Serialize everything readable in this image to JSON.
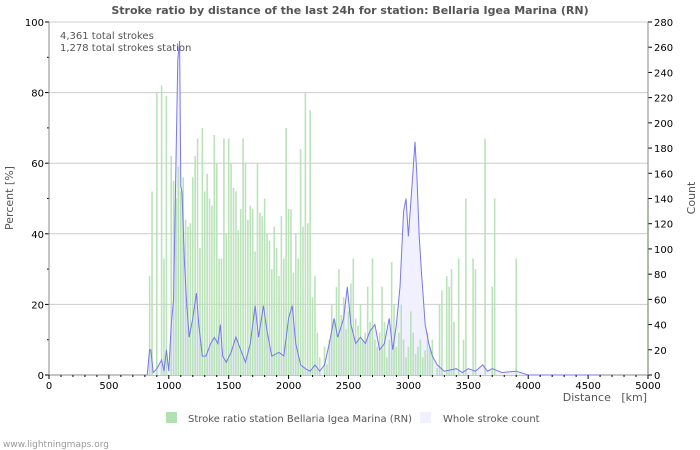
{
  "chart_data": {
    "type": "bar",
    "title": "Stroke ratio by distance of the last 24h for station: Bellaria Igea Marina (RN)",
    "annotations": [
      "4,361 total strokes",
      "1,278 total strokes station"
    ],
    "xlabel": "Distance   [km]",
    "ylabel": "Percent   [%]",
    "y2label": "Count",
    "xlim": [
      0,
      5000
    ],
    "ylim": [
      0,
      100
    ],
    "y2lim": [
      0,
      280
    ],
    "xticks": [
      0,
      500,
      1000,
      1500,
      2000,
      2500,
      3000,
      3500,
      4000,
      4500,
      5000
    ],
    "yticks": [
      0,
      20,
      40,
      60,
      80,
      100
    ],
    "y2ticks": [
      0,
      20,
      40,
      60,
      80,
      100,
      120,
      140,
      160,
      180,
      200,
      220,
      240,
      260,
      280
    ],
    "grid": true,
    "legend_position": "bottom",
    "series": [
      {
        "name": "Stroke ratio station Bellaria Igea Marina (RN)",
        "kind": "bar",
        "axis": "left",
        "color": "#b3e0b3",
        "x_start": 840,
        "bin_km": 20,
        "values": [
          28,
          52,
          0,
          80,
          0,
          82,
          33,
          79,
          0,
          62,
          55,
          50,
          59,
          52,
          56,
          44,
          42,
          43,
          56,
          62,
          67,
          36,
          70,
          52,
          57,
          50,
          48,
          68,
          60,
          33,
          33,
          67,
          40,
          67,
          60,
          53,
          52,
          41,
          47,
          67,
          60,
          44,
          48,
          47,
          35,
          60,
          46,
          45,
          50,
          40,
          38,
          30,
          42,
          36,
          28,
          45,
          33,
          70,
          47,
          47,
          29,
          40,
          33,
          64,
          42,
          80,
          43,
          75,
          22,
          28,
          12,
          5,
          0,
          8,
          3,
          10,
          20,
          15,
          25,
          30,
          17,
          22,
          13,
          18,
          26,
          33,
          16,
          14,
          20,
          10,
          12,
          25,
          15,
          33,
          10,
          8,
          12,
          25,
          15,
          5,
          10,
          32,
          20,
          8,
          12,
          20,
          10,
          5,
          8,
          18,
          12,
          6,
          8,
          10,
          5,
          7,
          12,
          8,
          10,
          0,
          2,
          20,
          24,
          0,
          28,
          25,
          30,
          15,
          0,
          33,
          0,
          10,
          50,
          0,
          0,
          33,
          30,
          0,
          0,
          0,
          67,
          0,
          0,
          25,
          50,
          0,
          0,
          0,
          0,
          0,
          0,
          0,
          0,
          33,
          0,
          0,
          0,
          0,
          0,
          0,
          0,
          0,
          0,
          0,
          0,
          0,
          0,
          0,
          0,
          0,
          0,
          0,
          0,
          0,
          0,
          0,
          0,
          0,
          0,
          0,
          0,
          0,
          0,
          0,
          0,
          0,
          0,
          0,
          0,
          0,
          0,
          0,
          0,
          0,
          0,
          0,
          0,
          0,
          0,
          0,
          0,
          0,
          0,
          0,
          0,
          0,
          0,
          0,
          50
        ]
      },
      {
        "name": "Whole stroke count",
        "kind": "area",
        "axis": "right",
        "color": "#f0f0ff",
        "line_color": "#7777ee",
        "points": [
          [
            820,
            0
          ],
          [
            840,
            20
          ],
          [
            850,
            20
          ],
          [
            870,
            2
          ],
          [
            900,
            5
          ],
          [
            940,
            12
          ],
          [
            960,
            3
          ],
          [
            980,
            20
          ],
          [
            1000,
            3
          ],
          [
            1020,
            40
          ],
          [
            1040,
            60
          ],
          [
            1060,
            170
          ],
          [
            1075,
            250
          ],
          [
            1090,
            265
          ],
          [
            1100,
            150
          ],
          [
            1110,
            145
          ],
          [
            1130,
            90
          ],
          [
            1150,
            55
          ],
          [
            1170,
            30
          ],
          [
            1200,
            45
          ],
          [
            1230,
            65
          ],
          [
            1250,
            40
          ],
          [
            1280,
            15
          ],
          [
            1310,
            15
          ],
          [
            1350,
            25
          ],
          [
            1380,
            30
          ],
          [
            1410,
            25
          ],
          [
            1430,
            40
          ],
          [
            1450,
            15
          ],
          [
            1480,
            10
          ],
          [
            1520,
            18
          ],
          [
            1560,
            30
          ],
          [
            1600,
            20
          ],
          [
            1640,
            10
          ],
          [
            1680,
            25
          ],
          [
            1720,
            55
          ],
          [
            1750,
            30
          ],
          [
            1790,
            55
          ],
          [
            1820,
            35
          ],
          [
            1860,
            15
          ],
          [
            1920,
            18
          ],
          [
            1960,
            15
          ],
          [
            2000,
            45
          ],
          [
            2030,
            55
          ],
          [
            2060,
            25
          ],
          [
            2100,
            8
          ],
          [
            2140,
            5
          ],
          [
            2180,
            3
          ],
          [
            2220,
            8
          ],
          [
            2260,
            3
          ],
          [
            2300,
            8
          ],
          [
            2340,
            25
          ],
          [
            2380,
            45
          ],
          [
            2410,
            30
          ],
          [
            2460,
            45
          ],
          [
            2490,
            70
          ],
          [
            2520,
            40
          ],
          [
            2560,
            25
          ],
          [
            2600,
            30
          ],
          [
            2640,
            25
          ],
          [
            2680,
            35
          ],
          [
            2720,
            40
          ],
          [
            2760,
            20
          ],
          [
            2800,
            25
          ],
          [
            2840,
            45
          ],
          [
            2870,
            20
          ],
          [
            2900,
            40
          ],
          [
            2930,
            70
          ],
          [
            2960,
            130
          ],
          [
            2980,
            140
          ],
          [
            3000,
            110
          ],
          [
            3030,
            150
          ],
          [
            3055,
            185
          ],
          [
            3070,
            160
          ],
          [
            3090,
            110
          ],
          [
            3110,
            80
          ],
          [
            3140,
            40
          ],
          [
            3170,
            25
          ],
          [
            3200,
            15
          ],
          [
            3240,
            8
          ],
          [
            3300,
            3
          ],
          [
            3400,
            5
          ],
          [
            3450,
            2
          ],
          [
            3500,
            5
          ],
          [
            3560,
            3
          ],
          [
            3620,
            8
          ],
          [
            3660,
            3
          ],
          [
            3700,
            5
          ],
          [
            3780,
            2
          ],
          [
            3900,
            3
          ],
          [
            4000,
            0
          ],
          [
            4600,
            0
          ]
        ]
      }
    ]
  },
  "footer": "www.lightningmaps.org"
}
